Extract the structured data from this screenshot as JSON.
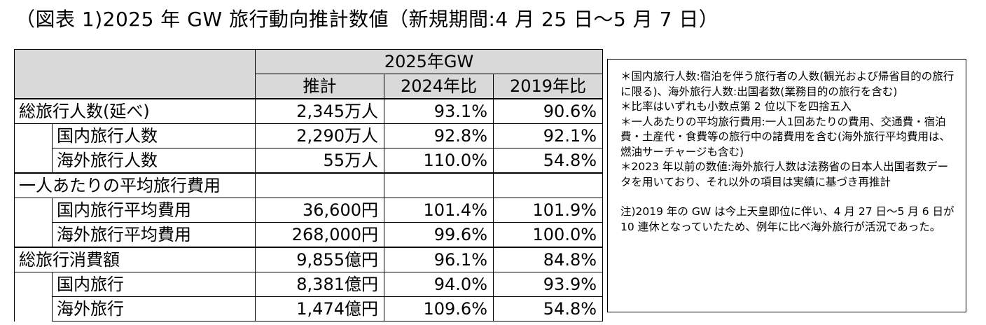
{
  "title": "（図表 1)2025 年 GW 旅行動向推計数値（新規期間:4 月 25 日～5 月 7 日）",
  "table": {
    "group_header": "2025年GW",
    "columns": [
      "推計",
      "2024年比",
      "2019年比"
    ],
    "rows": [
      {
        "label": "総旅行人数(延べ)",
        "indent": false,
        "values": [
          "2,345万人",
          "93.1%",
          "90.6%"
        ]
      },
      {
        "label": "国内旅行人数",
        "indent": true,
        "values": [
          "2,290万人",
          "92.8%",
          "92.1%"
        ]
      },
      {
        "label": "海外旅行人数",
        "indent": true,
        "values": [
          "55万人",
          "110.0%",
          "54.8%"
        ]
      },
      {
        "label": "一人あたりの平均旅行費用",
        "indent": false,
        "values": [
          "",
          "",
          ""
        ]
      },
      {
        "label": "国内旅行平均費用",
        "indent": true,
        "values": [
          "36,600円",
          "101.4%",
          "101.9%"
        ]
      },
      {
        "label": "海外旅行平均費用",
        "indent": true,
        "values": [
          "268,000円",
          "99.6%",
          "100.0%"
        ]
      },
      {
        "label": "総旅行消費額",
        "indent": false,
        "values": [
          "9,855億円",
          "96.1%",
          "84.8%"
        ]
      },
      {
        "label": "国内旅行",
        "indent": true,
        "values": [
          "8,381億円",
          "94.0%",
          "93.9%"
        ]
      },
      {
        "label": "海外旅行",
        "indent": true,
        "values": [
          "1,474億円",
          "109.6%",
          "54.8%"
        ]
      }
    ]
  },
  "notes": {
    "items": [
      "＊国内旅行人数:宿泊を伴う旅行者の人数(観光および帰省目的の旅行に限る)、海外旅行人数:出国者数(業務目的の旅行を含む)",
      "＊比率はいずれも小数点第 2 位以下を四捨五入",
      "＊一人あたりの平均旅行費用:一人1回あたりの費用、交通費・宿泊費・土産代・食費等の旅行中の諸費用を含む(海外旅行平均費用は、燃油サーチャージも含む)",
      "＊2023 年以前の数値:海外旅行人数は法務省の日本人出国者数データを用いており、それ以外の項目は実績に基づき再推計"
    ],
    "footnote": "注)2019 年の GW は今上天皇即位に伴い、4 月 27 日～5 月 6 日が 10 連休となっていたため、例年に比べ海外旅行が活況であった。"
  }
}
